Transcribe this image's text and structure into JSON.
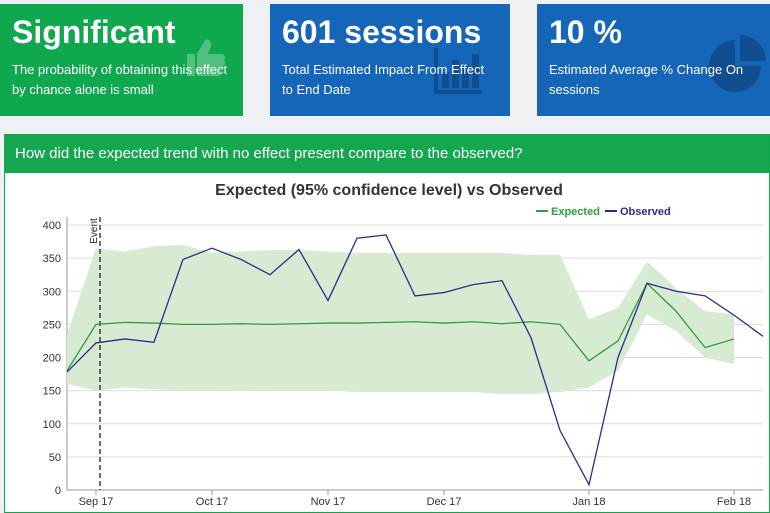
{
  "cards": [
    {
      "value": "Significant",
      "description": "The probability of obtaining this effect by chance alone is small",
      "color": "#0fa84e",
      "icon": "thumbs-up-icon"
    },
    {
      "value": "601 sessions",
      "description": "Total Estimated Impact From Effect to End Date",
      "color": "#1565b8",
      "icon": "bar-chart-icon"
    },
    {
      "value": "10 %",
      "description": "Estimated Average % Change On sessions",
      "color": "#1565b8",
      "icon": "pie-chart-icon"
    }
  ],
  "panel": {
    "title": "How did the expected trend with no effect present compare to the observed?"
  },
  "chart_data": {
    "type": "line",
    "title": "Expected (95% confidence level) vs Observed",
    "xlabel": "",
    "ylabel": "",
    "ylim": [
      0,
      400
    ],
    "y_ticks": [
      0,
      50,
      100,
      150,
      200,
      250,
      300,
      350,
      400
    ],
    "x_ticks": [
      "Sep 17",
      "Oct 17",
      "Nov 17",
      "Dec 17",
      "Jan 18",
      "Feb 18"
    ],
    "event_label": "Event",
    "legend": {
      "position": "top-right",
      "items": [
        "Expected",
        "Observed"
      ]
    },
    "grid": true,
    "colors": {
      "expected": "#2e9e3e",
      "observed": "#2b2b8c",
      "band": "#d6ebd2"
    },
    "x": [
      "2017-08-27",
      "2017-09-03",
      "2017-09-10",
      "2017-09-17",
      "2017-09-24",
      "2017-10-01",
      "2017-10-08",
      "2017-10-15",
      "2017-10-22",
      "2017-10-29",
      "2017-11-05",
      "2017-11-12",
      "2017-11-19",
      "2017-11-26",
      "2017-12-03",
      "2017-12-10",
      "2017-12-17",
      "2017-12-24",
      "2017-12-31",
      "2018-01-07",
      "2018-01-14",
      "2018-01-21",
      "2018-01-28",
      "2018-02-04",
      "2018-02-11"
    ],
    "series": [
      {
        "name": "Expected",
        "values": [
          180,
          250,
          253,
          252,
          250,
          250,
          251,
          250,
          251,
          252,
          252,
          253,
          254,
          252,
          254,
          251,
          254,
          250,
          195,
          225,
          312,
          270,
          215,
          228,
          null
        ]
      },
      {
        "name": "Observed",
        "values": [
          178,
          222,
          228,
          223,
          348,
          365,
          348,
          325,
          363,
          286,
          380,
          385,
          293,
          298,
          310,
          316,
          230,
          90,
          8,
          200,
          312,
          300,
          293,
          264,
          232
        ]
      }
    ],
    "band_upper": [
      235,
      365,
      360,
      368,
      370,
      358,
      360,
      362,
      362,
      360,
      358,
      358,
      358,
      358,
      358,
      358,
      355,
      355,
      258,
      275,
      345,
      305,
      270,
      265,
      null
    ],
    "band_lower": [
      160,
      150,
      155,
      152,
      150,
      150,
      151,
      150,
      150,
      150,
      148,
      148,
      148,
      148,
      148,
      145,
      145,
      148,
      155,
      180,
      265,
      240,
      200,
      190,
      null
    ]
  }
}
